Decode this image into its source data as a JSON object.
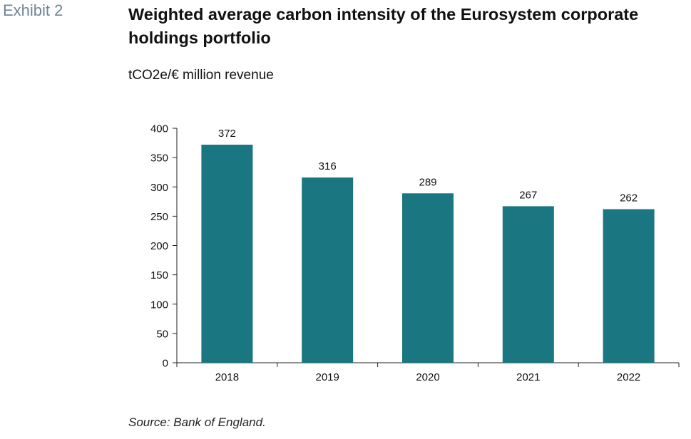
{
  "exhibit": "Exhibit 2",
  "title": "Weighted average carbon intensity of the Eurosystem corporate holdings portfolio",
  "source": "Source: Bank of England.",
  "chart_data": {
    "type": "bar",
    "title": "Weighted average carbon intensity of the Eurosystem corporate holdings portfolio",
    "ylabel": "tCO2e/€ million revenue",
    "xlabel": "",
    "categories": [
      "2018",
      "2019",
      "2020",
      "2021",
      "2022"
    ],
    "values": [
      372,
      316,
      289,
      267,
      262
    ],
    "ylim": [
      0,
      400
    ],
    "yticks": [
      0,
      50,
      100,
      150,
      200,
      250,
      300,
      350,
      400
    ],
    "grid": false,
    "legend": "none",
    "bar_color": "#1a7680"
  }
}
